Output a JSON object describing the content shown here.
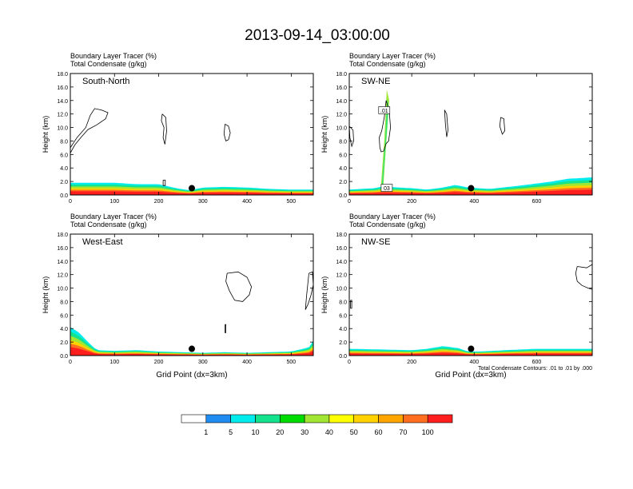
{
  "title": "2013-09-14_03:00:00",
  "colors": {
    "levels": [
      "#ffffff",
      "#1e8cf0",
      "#00ecec",
      "#14e28c",
      "#00dc00",
      "#a0e632",
      "#ffff00",
      "#ffd200",
      "#ffa500",
      "#ff6e1e",
      "#ff1e1e"
    ],
    "contour": "#000000",
    "marker": "#000000"
  },
  "chart_data": [
    {
      "type": "heatmap",
      "panel_label": "South-North",
      "subtitle": [
        "Boundary Layer Tracer   (%)",
        "Total Condensate   (g/kg)"
      ],
      "xlabel": "",
      "ylabel": "Height (km)",
      "xlim": [
        0,
        550
      ],
      "ylim": [
        0,
        18
      ],
      "xticks": [
        0,
        100,
        200,
        300,
        400,
        500
      ],
      "yticks": [
        "0.0",
        "2.0",
        "4.0",
        "6.0",
        "8.0",
        "10.0",
        "12.0",
        "14.0",
        "16.0",
        "18.0"
      ],
      "marker_point": [
        275,
        1.0
      ],
      "tracer_profile": {
        "x": [
          0,
          100,
          150,
          200,
          240,
          270,
          300,
          350,
          400,
          450,
          500,
          550
        ],
        "top_km": [
          1.8,
          1.8,
          1.6,
          1.6,
          1.0,
          0.7,
          1.1,
          1.2,
          1.1,
          0.9,
          0.8,
          0.8
        ]
      },
      "cloud_contours": [
        {
          "x": [
            0,
            15,
            35,
            45,
            55,
            70,
            85,
            80,
            60,
            40,
            25,
            10,
            0
          ],
          "y": [
            7.0,
            8.5,
            10.0,
            11.8,
            12.8,
            12.6,
            12.2,
            11.3,
            10.4,
            9.7,
            8.6,
            7.4,
            6.2
          ]
        },
        {
          "x": [
            208,
            216,
            218,
            214,
            210,
            212,
            206,
            208
          ],
          "y": [
            12.0,
            11.5,
            9.5,
            7.5,
            8.5,
            10.0,
            11.0,
            12.0
          ]
        },
        {
          "x": [
            350,
            358,
            362,
            358,
            352,
            348,
            350
          ],
          "y": [
            10.5,
            10.2,
            9.2,
            8.2,
            8.0,
            9.0,
            10.5
          ]
        },
        {
          "x": [
            210,
            215,
            215,
            210,
            210
          ],
          "y": [
            2.2,
            2.2,
            1.4,
            1.4,
            2.2
          ]
        }
      ]
    },
    {
      "type": "heatmap",
      "panel_label": "SW-NE",
      "subtitle": [
        "Boundary Layer Tracer   (%)",
        "Total Condensate   (g/kg)"
      ],
      "xlabel": "",
      "ylabel": "Height (km)",
      "xlim": [
        0,
        778
      ],
      "ylim": [
        0,
        18
      ],
      "xticks": [
        0,
        200,
        400,
        600
      ],
      "yticks": [
        "0.0",
        "2.0",
        "4.0",
        "6.0",
        "8.0",
        "10.0",
        "12.0",
        "14.0",
        "16.0",
        "18.0"
      ],
      "marker_point": [
        390,
        1.0
      ],
      "tracer_profile": {
        "x": [
          0,
          80,
          110,
          130,
          160,
          200,
          250,
          300,
          340,
          380,
          450,
          550,
          650,
          700,
          778
        ],
        "top_km": [
          0.8,
          1.0,
          1.3,
          1.2,
          1.1,
          1.0,
          0.8,
          1.1,
          1.5,
          1.1,
          0.9,
          1.4,
          2.0,
          2.4,
          2.6
        ]
      },
      "plume": {
        "x": [
          100,
          112,
          120,
          128,
          116,
          108
        ],
        "y": [
          0.5,
          8.0,
          15.6,
          14.0,
          6.0,
          0.5
        ]
      },
      "annotations": [
        {
          "text": ".01",
          "x": 112,
          "y": 12.5
        },
        {
          "text": "03",
          "x": 120,
          "y": 1.0
        }
      ],
      "cloud_contours": [
        {
          "x": [
            118,
            128,
            132,
            126,
            118,
            110,
            102,
            98,
            96,
            104,
            112,
            118
          ],
          "y": [
            14.0,
            12.5,
            10.0,
            8.0,
            7.6,
            6.5,
            6.4,
            7.0,
            8.5,
            9.5,
            11.5,
            14.0
          ]
        },
        {
          "x": [
            305,
            312,
            316,
            312,
            308,
            305
          ],
          "y": [
            12.6,
            12.0,
            9.6,
            8.6,
            10.5,
            12.6
          ]
        },
        {
          "x": [
            485,
            495,
            498,
            490,
            482,
            485
          ],
          "y": [
            11.5,
            11.3,
            9.5,
            9.0,
            10.2,
            11.5
          ]
        },
        {
          "x": [
            0,
            12,
            14,
            8,
            2,
            0
          ],
          "y": [
            10.2,
            9.6,
            8.0,
            7.2,
            8.5,
            10.2
          ]
        }
      ]
    },
    {
      "type": "heatmap",
      "panel_label": "West-East",
      "subtitle": [
        "Boundary Layer Tracer   (%)",
        "Total Condensate   (g/kg)"
      ],
      "xlabel": "Grid Point (dx=3km)",
      "ylabel": "Height (km)",
      "xlim": [
        0,
        550
      ],
      "ylim": [
        0,
        18
      ],
      "xticks": [
        0,
        100,
        200,
        300,
        400,
        500
      ],
      "yticks": [
        "0.0",
        "2.0",
        "4.0",
        "6.0",
        "8.0",
        "10.0",
        "12.0",
        "14.0",
        "16.0",
        "18.0"
      ],
      "marker_point": [
        275,
        1.0
      ],
      "tracer_profile": {
        "x": [
          0,
          20,
          40,
          60,
          100,
          150,
          200,
          250,
          300,
          350,
          400,
          450,
          500,
          540,
          550
        ],
        "top_km": [
          4.2,
          3.4,
          2.0,
          0.8,
          0.7,
          0.8,
          0.6,
          0.5,
          0.4,
          0.5,
          0.4,
          0.5,
          0.6,
          1.2,
          2.2
        ]
      },
      "cloud_contours": [
        {
          "x": [
            355,
            380,
            400,
            410,
            405,
            390,
            372,
            360,
            352,
            355
          ],
          "y": [
            12.2,
            12.4,
            11.6,
            10.2,
            9.0,
            8.0,
            8.2,
            9.6,
            11.0,
            12.2
          ]
        },
        {
          "x": [
            540,
            548,
            550,
            545,
            538,
            532,
            535,
            540
          ],
          "y": [
            12.2,
            12.4,
            10.5,
            9.0,
            7.6,
            6.8,
            9.0,
            12.2
          ]
        },
        {
          "x": [
            350,
            352,
            352,
            350,
            350
          ],
          "y": [
            4.6,
            4.6,
            3.4,
            3.4,
            4.6
          ]
        }
      ]
    },
    {
      "type": "heatmap",
      "panel_label": "NW-SE",
      "subtitle": [
        "Boundary Layer Tracer   (%)",
        "Total Condensate   (g/kg)"
      ],
      "xlabel": "Grid Point (dx=3km)",
      "ylabel": "Height (km)",
      "xlim": [
        0,
        778
      ],
      "ylim": [
        0,
        18
      ],
      "xticks": [
        0,
        200,
        400,
        600
      ],
      "yticks": [
        "0.0",
        "2.0",
        "4.0",
        "6.0",
        "8.0",
        "10.0",
        "12.0",
        "14.0",
        "16.0",
        "18.0"
      ],
      "marker_point": [
        390,
        1.0
      ],
      "tracer_profile": {
        "x": [
          0,
          100,
          200,
          250,
          300,
          350,
          380,
          420,
          500,
          600,
          700,
          778
        ],
        "top_km": [
          1.0,
          0.9,
          0.8,
          1.0,
          1.4,
          1.1,
          0.6,
          0.6,
          0.8,
          1.0,
          1.0,
          1.0
        ]
      },
      "cloud_contours": [
        {
          "x": [
            730,
            760,
            778,
            778,
            765,
            745,
            730,
            725,
            730
          ],
          "y": [
            13.2,
            13.0,
            13.5,
            9.8,
            10.0,
            10.4,
            11.0,
            12.2,
            13.2
          ]
        },
        {
          "x": [
            4,
            8,
            8,
            4,
            4
          ],
          "y": [
            8.2,
            8.2,
            7.0,
            7.0,
            8.2
          ]
        }
      ],
      "footnote": "Total Condensate Contours: .01 to .01 by .000"
    }
  ],
  "colorbar": {
    "labels": [
      "1",
      "5",
      "10",
      "20",
      "30",
      "40",
      "50",
      "60",
      "70",
      "100"
    ]
  }
}
